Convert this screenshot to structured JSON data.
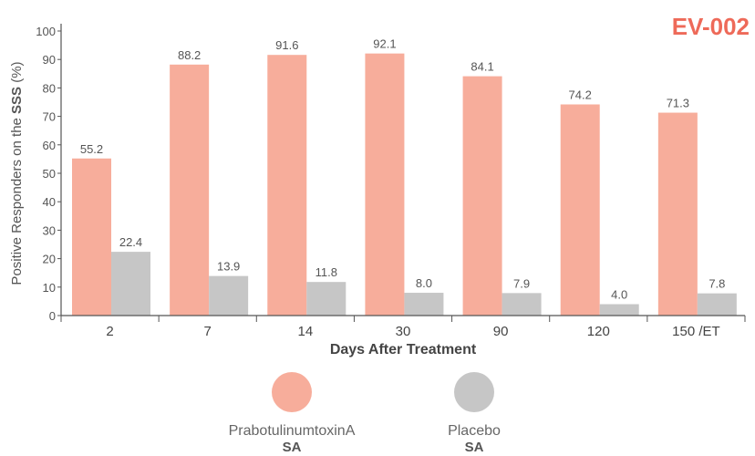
{
  "study_tag": "EV-002",
  "legend": [
    {
      "name": "PrabotulinumtoxinA",
      "sub": "SA"
    },
    {
      "name": "Placebo",
      "sub": "SA"
    }
  ],
  "colors": {
    "pra": "#f7ad9b",
    "placebo": "#c6c6c6",
    "tag": "#ee6a59",
    "axis": "#555555"
  },
  "chart_data": {
    "type": "bar",
    "xlabel": "Days After Treatment",
    "ylabel_parts": [
      "Positive Responders on the ",
      "SSS",
      " (%)"
    ],
    "ylim": [
      0,
      100
    ],
    "yticks": [
      0,
      10,
      20,
      30,
      40,
      50,
      60,
      70,
      80,
      90,
      100
    ],
    "categories": [
      "2",
      "7",
      "14",
      "30",
      "90",
      "120",
      "150 /ET"
    ],
    "series": [
      {
        "name": "PrabotulinumtoxinA SA",
        "values": [
          55.2,
          88.2,
          91.6,
          92.1,
          84.1,
          74.2,
          71.3
        ],
        "labels": [
          "55.2",
          "88.2",
          "91.6",
          "92.1",
          "84.1",
          "74.2",
          "71.3"
        ]
      },
      {
        "name": "Placebo SA",
        "values": [
          22.4,
          13.9,
          11.8,
          8.0,
          7.9,
          4.0,
          7.8
        ],
        "labels": [
          "22.4",
          "13.9",
          "11.8",
          "8.0",
          "7.9",
          "4.0",
          "7.8"
        ]
      }
    ]
  }
}
